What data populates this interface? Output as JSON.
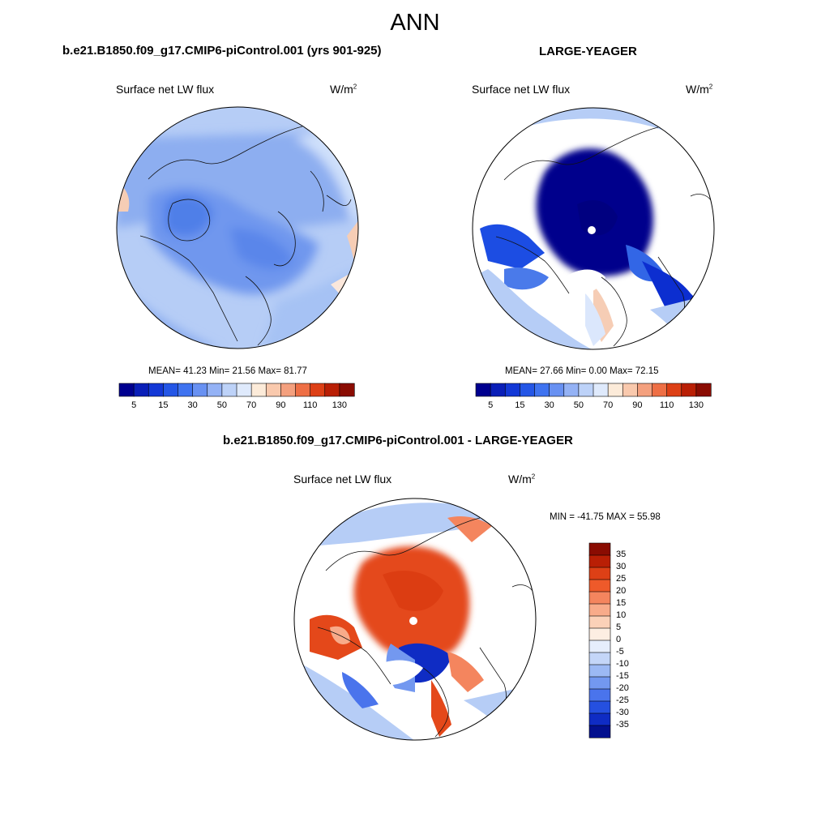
{
  "main_title": "ANN",
  "units_base": "W/m",
  "units_exp": "2",
  "panels": [
    {
      "case_title": "b.e21.B1850.f09_g17.CMIP6-piControl.001 (yrs 901-925)",
      "variable": "Surface net LW flux",
      "stats_text": "MEAN=  41.23  Min=  21.56  Max=  81.77"
    },
    {
      "case_title": "LARGE-YEAGER",
      "variable": "Surface net LW flux",
      "stats_text": "MEAN=  27.66  Min=   0.00  Max=  72.15"
    },
    {
      "case_title": "b.e21.B1850.f09_g17.CMIP6-piControl.001 - LARGE-YEAGER",
      "variable": "Surface net LW flux",
      "stats_text": "MIN = -41.75 MAX =  55.98"
    }
  ],
  "chart_data": [
    {
      "type": "heatmap",
      "projection": "north polar stereographic",
      "title": "Surface net LW flux",
      "units": "W/m2",
      "mean": 41.23,
      "min": 21.56,
      "max": 81.77,
      "colorbar": {
        "orientation": "horizontal",
        "levels": [
          5,
          10,
          15,
          20,
          30,
          40,
          50,
          60,
          70,
          80,
          90,
          100,
          110,
          120,
          130
        ],
        "tick_labels": [
          "5",
          "15",
          "30",
          "50",
          "70",
          "90",
          "110",
          "130"
        ],
        "colors": [
          "#00008f",
          "#0a1fb8",
          "#1338d6",
          "#2456e6",
          "#3f73f0",
          "#6891f2",
          "#94b2f5",
          "#bdd2f8",
          "#dfeafc",
          "#fcebd9",
          "#f9c9ad",
          "#f4a07e",
          "#ee6f45",
          "#dd4016",
          "#b91f05",
          "#8a0c02"
        ]
      }
    },
    {
      "type": "heatmap",
      "projection": "north polar stereographic",
      "title": "Surface net LW flux",
      "units": "W/m2",
      "mean": 27.66,
      "min": 0.0,
      "max": 72.15,
      "colorbar": {
        "orientation": "horizontal",
        "levels": [
          5,
          10,
          15,
          20,
          30,
          40,
          50,
          60,
          70,
          80,
          90,
          100,
          110,
          120,
          130
        ],
        "tick_labels": [
          "5",
          "15",
          "30",
          "50",
          "70",
          "90",
          "110",
          "130"
        ],
        "colors": [
          "#00008f",
          "#0a1fb8",
          "#1338d6",
          "#2456e6",
          "#3f73f0",
          "#6891f2",
          "#94b2f5",
          "#bdd2f8",
          "#dfeafc",
          "#fcebd9",
          "#f9c9ad",
          "#f4a07e",
          "#ee6f45",
          "#dd4016",
          "#b91f05",
          "#8a0c02"
        ]
      }
    },
    {
      "type": "heatmap",
      "projection": "north polar stereographic",
      "title": "Surface net LW flux",
      "units": "W/m2",
      "min": -41.75,
      "max": 55.98,
      "colorbar": {
        "orientation": "vertical",
        "levels": [
          35,
          30,
          25,
          20,
          15,
          10,
          5,
          0,
          -5,
          -10,
          -15,
          -20,
          -25,
          -30,
          -35
        ],
        "tick_labels": [
          "35",
          "30",
          "25",
          "20",
          "15",
          "10",
          "5",
          "0",
          "-5",
          "-10",
          "-15",
          "-20",
          "-25",
          "-30",
          "-35"
        ],
        "colors": [
          "#8a0c02",
          "#b91f05",
          "#dd4016",
          "#ee5a2a",
          "#f4855e",
          "#f8ab8a",
          "#fbd1b8",
          "#fdeee2",
          "#e6eefc",
          "#c4d6f8",
          "#9cb9f4",
          "#7398f0",
          "#4a74ec",
          "#2550e0",
          "#0f2cc4",
          "#03108e"
        ]
      }
    }
  ]
}
